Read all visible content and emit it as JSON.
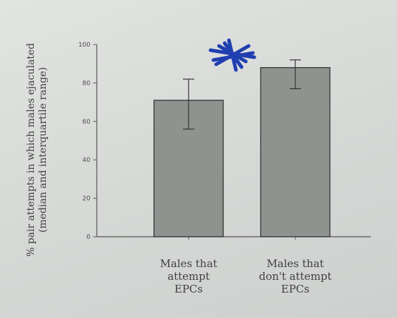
{
  "chart_data": {
    "type": "bar",
    "categories": [
      [
        "Males that",
        "attempt",
        "EPCs"
      ],
      [
        "Males that",
        "don't attempt",
        "EPCs"
      ]
    ],
    "values": [
      71,
      88
    ],
    "error_low": [
      56,
      77
    ],
    "error_high": [
      82,
      92
    ],
    "ylabel": [
      "% pair attempts in which males ejaculated",
      "(median and interquartile range)"
    ],
    "yticks": [
      0,
      20,
      40,
      60,
      80,
      100
    ],
    "ylim": [
      0,
      100
    ],
    "bar_color": "#8f938f",
    "annotation_color": "#1f3fb0",
    "annotation": "asterisk-mark"
  }
}
